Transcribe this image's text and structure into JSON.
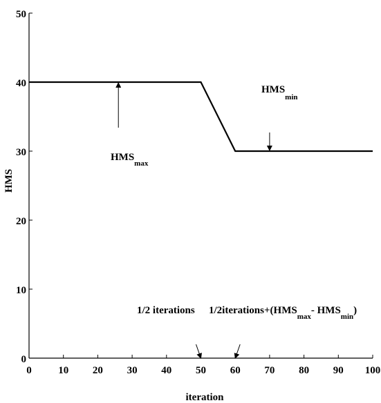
{
  "chart_data": {
    "type": "line",
    "xlabel": "iteration",
    "ylabel": "HMS",
    "xlim": [
      0,
      100
    ],
    "ylim": [
      0,
      50
    ],
    "xticks": [
      0,
      10,
      20,
      30,
      40,
      50,
      60,
      70,
      80,
      90,
      100
    ],
    "yticks": [
      0,
      10,
      20,
      30,
      40,
      50
    ],
    "grid": false,
    "series": [
      {
        "x": [
          0,
          50,
          60,
          100
        ],
        "y": [
          40,
          40,
          30,
          30
        ],
        "color": "#000000"
      }
    ],
    "annotations": [
      {
        "id": "hms-max",
        "main": "HMS",
        "sub": "max",
        "arrow_to": [
          26,
          40
        ],
        "direction": "up"
      },
      {
        "id": "hms-min",
        "main": "HMS",
        "sub": "min",
        "arrow_to": [
          70,
          30
        ],
        "direction": "down"
      },
      {
        "id": "half-iterations",
        "text": "1/2 iterations",
        "arrow_to": [
          50,
          0
        ]
      },
      {
        "id": "half-iterations-plus",
        "prefix": "1/2iterations+(HMS",
        "sub1": "max",
        "middle": "- HMS",
        "sub2": "min",
        "suffix": ")",
        "arrow_to": [
          60,
          0
        ]
      }
    ]
  }
}
